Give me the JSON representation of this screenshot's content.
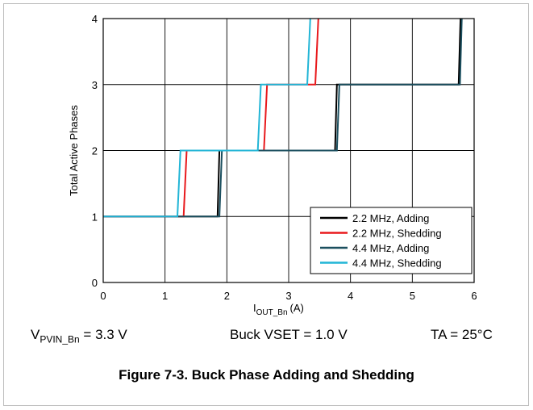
{
  "chart_data": {
    "type": "line",
    "title": "",
    "xlabel": {
      "main": "I",
      "sub": "OUT_Bn",
      "unit": "(A)"
    },
    "ylabel": "Total Active Phases",
    "xlim": [
      0,
      6
    ],
    "ylim": [
      0,
      4
    ],
    "xticks": [
      "0",
      "1",
      "2",
      "3",
      "4",
      "5",
      "6"
    ],
    "yticks": [
      "0",
      "1",
      "2",
      "3",
      "4"
    ],
    "grid": true,
    "legend_position": "bottom-right",
    "series": [
      {
        "name": "2.2 MHz, Adding",
        "color": "#000000",
        "x": [
          0,
          1.85,
          1.88,
          3.75,
          3.78,
          5.75,
          5.78
        ],
        "y": [
          1,
          1,
          2,
          2,
          3,
          3,
          4
        ]
      },
      {
        "name": "2.2 MHz, Shedding",
        "color": "#e8191c",
        "x": [
          0,
          1.3,
          1.35,
          2.6,
          2.65,
          3.43,
          3.48
        ],
        "y": [
          1,
          1,
          2,
          2,
          3,
          3,
          4
        ]
      },
      {
        "name": "4.4 MHz, Adding",
        "color": "#1b4f5f",
        "x": [
          0,
          1.88,
          1.92,
          3.78,
          3.82,
          5.77,
          5.8
        ],
        "y": [
          1,
          1,
          2,
          2,
          3,
          3,
          4
        ]
      },
      {
        "name": "4.4 MHz, Shedding",
        "color": "#22b5d6",
        "x": [
          0,
          1.2,
          1.25,
          2.5,
          2.55,
          3.3,
          3.35
        ],
        "y": [
          1,
          1,
          2,
          2,
          3,
          3,
          4
        ]
      }
    ]
  },
  "conditions": {
    "vpvin_main": "V",
    "vpvin_sub": "PVIN_Bn",
    "vpvin_value": " = 3.3 V",
    "vset": "Buck VSET = 1.0 V",
    "ta": "TA = 25°C"
  },
  "caption": "Figure 7-3. Buck Phase Adding and Shedding"
}
